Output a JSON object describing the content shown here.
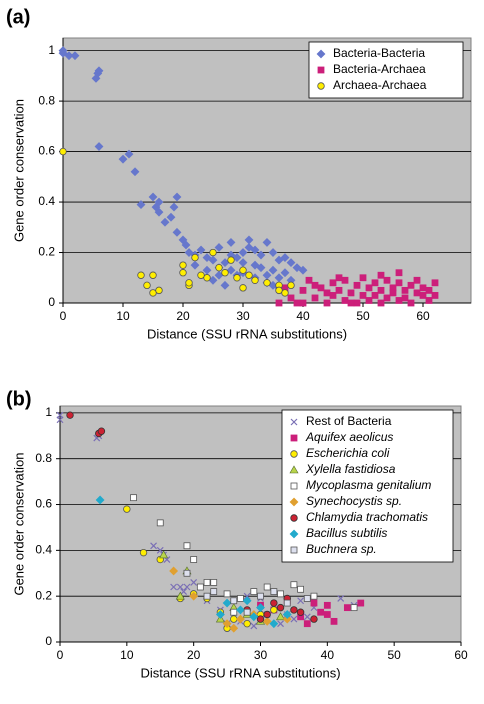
{
  "chart_data": [
    {
      "type": "scatter",
      "panel_label": "(a)",
      "x_label": "Distance (SSU rRNA substitutions)",
      "y_label": "Gene order conservation",
      "xlim": [
        0,
        68
      ],
      "ylim": [
        0,
        1.05
      ],
      "xticks": [
        0,
        10,
        20,
        30,
        40,
        50,
        60
      ],
      "yticks": [
        0,
        0.2,
        0.4,
        0.6,
        0.8,
        1
      ],
      "grid": true,
      "legend": "upper right",
      "series": [
        {
          "name": "Bacteria-Bacteria",
          "color": "#6677cc",
          "marker": "diamond",
          "italic": false,
          "x": [
            0,
            1,
            2,
            0,
            5.5,
            5.8,
            6,
            6,
            10,
            11,
            12,
            13,
            15,
            15.5,
            16,
            16,
            18,
            19,
            18.5,
            17,
            19,
            20,
            20.5,
            21,
            22,
            23,
            24,
            25,
            26,
            27,
            28,
            29,
            30,
            31,
            32,
            33,
            34,
            35,
            36,
            37,
            38,
            39,
            40,
            26,
            28,
            30,
            32,
            34,
            36,
            25,
            27,
            29,
            31,
            33,
            35,
            37,
            24,
            28,
            30,
            34,
            36,
            38,
            22,
            26,
            32,
            35
          ],
          "values": [
            0.99,
            0.98,
            0.98,
            1.0,
            0.89,
            0.91,
            0.92,
            0.62,
            0.57,
            0.59,
            0.52,
            0.39,
            0.42,
            0.38,
            0.4,
            0.36,
            0.34,
            0.42,
            0.38,
            0.32,
            0.28,
            0.25,
            0.23,
            0.2,
            0.19,
            0.21,
            0.18,
            0.17,
            0.14,
            0.16,
            0.13,
            0.18,
            0.2,
            0.22,
            0.15,
            0.19,
            0.24,
            0.13,
            0.17,
            0.12,
            0.16,
            0.14,
            0.13,
            0.22,
            0.24,
            0.12,
            0.1,
            0.08,
            0.1,
            0.09,
            0.07,
            0.11,
            0.25,
            0.14,
            0.2,
            0.18,
            0.13,
            0.19,
            0.16,
            0.11,
            0.06,
            0.09,
            0.15,
            0.11,
            0.21,
            0.07
          ]
        },
        {
          "name": "Bacteria-Archaea",
          "color": "#cc1f7a",
          "marker": "square",
          "italic": false,
          "x": [
            37,
            38,
            39,
            40,
            41,
            42,
            43,
            44,
            45,
            45,
            46,
            47,
            47,
            48,
            49,
            49,
            50,
            50,
            51,
            51,
            52,
            52,
            53,
            53,
            54,
            54,
            55,
            55,
            56,
            56,
            57,
            57,
            58,
            58,
            59,
            59,
            60,
            60,
            61,
            61,
            62,
            62,
            48,
            46,
            44,
            42,
            40,
            36,
            53,
            56
          ],
          "values": [
            0.06,
            0.02,
            0.0,
            0.05,
            0.09,
            0.02,
            0.06,
            0.0,
            0.03,
            0.08,
            0.05,
            0.01,
            0.09,
            0.04,
            0.07,
            0.0,
            0.03,
            0.1,
            0.06,
            0.01,
            0.08,
            0.03,
            0.05,
            0.0,
            0.09,
            0.02,
            0.06,
            0.04,
            0.01,
            0.08,
            0.05,
            0.02,
            0.07,
            0.0,
            0.04,
            0.09,
            0.03,
            0.06,
            0.01,
            0.05,
            0.03,
            0.08,
            0.0,
            0.1,
            0.04,
            0.07,
            0.0,
            0.0,
            0.11,
            0.12
          ]
        },
        {
          "name": "Archaea-Archaea",
          "color": "#ffee00",
          "marker": "circle",
          "italic": false,
          "x": [
            0,
            13,
            14,
            15,
            15,
            16,
            20,
            20,
            21,
            21,
            22,
            24,
            25,
            26,
            27,
            28,
            29,
            30,
            30,
            31,
            32,
            34,
            36,
            36,
            37,
            38,
            23
          ],
          "values": [
            0.6,
            0.11,
            0.07,
            0.11,
            0.04,
            0.05,
            0.15,
            0.12,
            0.07,
            0.08,
            0.18,
            0.1,
            0.2,
            0.14,
            0.12,
            0.17,
            0.1,
            0.13,
            0.06,
            0.11,
            0.09,
            0.08,
            0.07,
            0.05,
            0.04,
            0.07,
            0.11
          ]
        }
      ]
    },
    {
      "type": "scatter",
      "panel_label": "(b)",
      "x_label": "Distance (SSU rRNA substitutions)",
      "y_label": "Gene order conservation",
      "xlim": [
        0,
        60
      ],
      "ylim": [
        0,
        1.03
      ],
      "xticks": [
        0,
        10,
        20,
        30,
        40,
        50,
        60
      ],
      "yticks": [
        0,
        0.2,
        0.4,
        0.6,
        0.8,
        1
      ],
      "grid": true,
      "legend": "upper right",
      "series": [
        {
          "name": "Rest of Bacteria",
          "color": "#7a6fb5",
          "marker": "x",
          "italic": false,
          "x": [
            0,
            0,
            5.5,
            5.8,
            15,
            15.5,
            16,
            17,
            18,
            18.5,
            19,
            20,
            22,
            24,
            26,
            28,
            30,
            32,
            34,
            36,
            38,
            42,
            44,
            25,
            27,
            29,
            31,
            33,
            35,
            37,
            14
          ],
          "values": [
            0.99,
            0.97,
            0.89,
            0.9,
            0.4,
            0.38,
            0.36,
            0.24,
            0.24,
            0.22,
            0.24,
            0.26,
            0.18,
            0.14,
            0.13,
            0.2,
            0.19,
            0.16,
            0.12,
            0.18,
            0.15,
            0.19,
            0.16,
            0.08,
            0.09,
            0.07,
            0.12,
            0.08,
            0.1,
            0.11,
            0.42
          ]
        },
        {
          "name": "Aquifex aeolicus",
          "color": "#cc1f7a",
          "marker": "square",
          "italic": true,
          "x": [
            38,
            39,
            40,
            41,
            43,
            45,
            32,
            34,
            36,
            37,
            30,
            40
          ],
          "values": [
            0.17,
            0.13,
            0.12,
            0.09,
            0.15,
            0.17,
            0.14,
            0.18,
            0.11,
            0.08,
            0.16,
            0.16
          ]
        },
        {
          "name": "Escherichia coli",
          "color": "#ffee00",
          "marker": "circle",
          "italic": true,
          "x": [
            10,
            12.5,
            15,
            18,
            20,
            22,
            24,
            25,
            26,
            28,
            30,
            32
          ],
          "values": [
            0.58,
            0.39,
            0.36,
            0.19,
            0.21,
            0.19,
            0.13,
            0.06,
            0.1,
            0.08,
            0.12,
            0.14
          ]
        },
        {
          "name": "Xylella fastidiosa",
          "color": "#b8d44a",
          "marker": "triangle",
          "italic": true,
          "x": [
            15.5,
            18,
            19,
            24,
            26,
            28,
            30,
            33
          ],
          "values": [
            0.38,
            0.2,
            0.31,
            0.1,
            0.15,
            0.12,
            0.09,
            0.11
          ]
        },
        {
          "name": "Mycoplasma genitalium",
          "color": "#ffffff",
          "marker": "square",
          "italic": true,
          "x": [
            11,
            15,
            19,
            20,
            21,
            22,
            23,
            25,
            27,
            29,
            31,
            33,
            35,
            36,
            38,
            44,
            26
          ],
          "values": [
            0.63,
            0.52,
            0.42,
            0.36,
            0.24,
            0.26,
            0.26,
            0.21,
            0.19,
            0.22,
            0.24,
            0.21,
            0.25,
            0.23,
            0.2,
            0.15,
            0.13
          ]
        },
        {
          "name": "Synechocystis sp.",
          "color": "#e0a030",
          "marker": "diamond",
          "italic": true,
          "x": [
            17,
            20,
            25,
            26,
            27,
            29,
            31,
            34
          ],
          "values": [
            0.31,
            0.2,
            0.08,
            0.06,
            0.1,
            0.12,
            0.09,
            0.1
          ]
        },
        {
          "name": "Chlamydia trachomatis",
          "color": "#cc2233",
          "marker": "circle",
          "italic": true,
          "x": [
            1.5,
            5.8,
            6.2,
            28,
            30,
            31,
            32,
            33,
            34,
            35,
            36,
            38
          ],
          "values": [
            0.99,
            0.91,
            0.92,
            0.14,
            0.1,
            0.12,
            0.17,
            0.15,
            0.19,
            0.14,
            0.13,
            0.1
          ]
        },
        {
          "name": "Bacillus subtilis",
          "color": "#22aacc",
          "marker": "diamond",
          "italic": true,
          "x": [
            6,
            24,
            25,
            27,
            28,
            29,
            30,
            32,
            34
          ],
          "values": [
            0.62,
            0.12,
            0.17,
            0.14,
            0.18,
            0.11,
            0.15,
            0.08,
            0.12
          ]
        },
        {
          "name": "Buchnera sp.",
          "color": "#dde0ee",
          "marker": "square",
          "italic": true,
          "x": [
            19,
            22,
            23,
            26,
            28,
            30,
            32,
            34,
            37
          ],
          "values": [
            0.3,
            0.2,
            0.22,
            0.18,
            0.13,
            0.2,
            0.22,
            0.17,
            0.19
          ]
        }
      ]
    }
  ]
}
